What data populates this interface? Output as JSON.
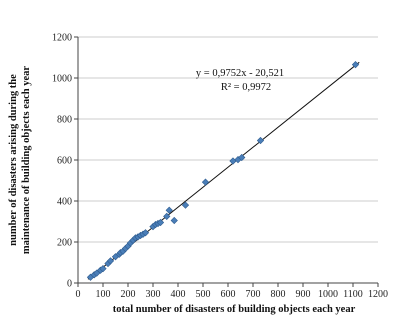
{
  "chart_data": {
    "type": "scatter",
    "xlabel": "total number of disasters of building objects each year",
    "ylabel_lines": [
      "number of disasters arising during the",
      "maintenance of building objects each year"
    ],
    "xlim": [
      0,
      1200
    ],
    "ylim": [
      0,
      1200
    ],
    "x_ticks": [
      "0",
      "100",
      "200",
      "300",
      "400",
      "500",
      "600",
      "700",
      "800",
      "900",
      "1000",
      "1100",
      "1200"
    ],
    "y_ticks": [
      "0",
      "200",
      "400",
      "600",
      "800",
      "1000",
      "1200"
    ],
    "grid": "horizontal",
    "legend": "none",
    "trendline": {
      "type": "linear",
      "slope": 0.9752,
      "intercept": -20.521,
      "equation": "y = 0,9752x - 20,521",
      "r_squared": "R² = 0,9972"
    },
    "points": [
      {
        "x": 50,
        "y": 28
      },
      {
        "x": 65,
        "y": 40
      },
      {
        "x": 75,
        "y": 48
      },
      {
        "x": 90,
        "y": 62
      },
      {
        "x": 100,
        "y": 70
      },
      {
        "x": 120,
        "y": 95
      },
      {
        "x": 130,
        "y": 108
      },
      {
        "x": 150,
        "y": 128
      },
      {
        "x": 165,
        "y": 140
      },
      {
        "x": 170,
        "y": 148
      },
      {
        "x": 180,
        "y": 155
      },
      {
        "x": 190,
        "y": 168
      },
      {
        "x": 200,
        "y": 180
      },
      {
        "x": 210,
        "y": 195
      },
      {
        "x": 220,
        "y": 208
      },
      {
        "x": 230,
        "y": 220
      },
      {
        "x": 240,
        "y": 225
      },
      {
        "x": 250,
        "y": 232
      },
      {
        "x": 260,
        "y": 238
      },
      {
        "x": 270,
        "y": 245
      },
      {
        "x": 300,
        "y": 275
      },
      {
        "x": 310,
        "y": 285
      },
      {
        "x": 320,
        "y": 290
      },
      {
        "x": 330,
        "y": 295
      },
      {
        "x": 355,
        "y": 325
      },
      {
        "x": 365,
        "y": 355
      },
      {
        "x": 385,
        "y": 305
      },
      {
        "x": 430,
        "y": 380
      },
      {
        "x": 510,
        "y": 492
      },
      {
        "x": 620,
        "y": 595
      },
      {
        "x": 640,
        "y": 602
      },
      {
        "x": 655,
        "y": 612
      },
      {
        "x": 730,
        "y": 695
      },
      {
        "x": 1110,
        "y": 1065
      }
    ],
    "colors": {
      "marker": "#4a7eb8",
      "marker_edge": "#2f5c8f",
      "trendline": "#111111",
      "grid": "#bdbdbd",
      "axis": "#444444"
    }
  }
}
